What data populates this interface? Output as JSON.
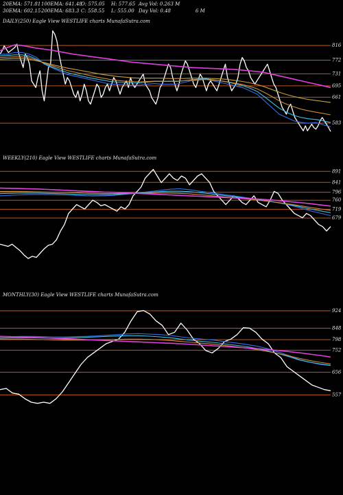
{
  "header": {
    "row1": [
      {
        "k": "ema20_label",
        "text": "20EMA: 571.81"
      },
      {
        "k": "ema100_label",
        "text": "100EMA: 641.48"
      },
      {
        "k": "open_label",
        "text": "O: 575.05"
      },
      {
        "k": "high_label",
        "text": "H: 577.65"
      },
      {
        "k": "avgvol_label",
        "text": "Avg Vol: 0.263 M"
      }
    ],
    "row2": [
      {
        "k": "ema30_label",
        "text": "30EMA: 602.15"
      },
      {
        "k": "ema200_label",
        "text": "200EMA: 683.3"
      },
      {
        "k": "close_label",
        "text": "C: 558.55"
      },
      {
        "k": "low_label",
        "text": "L: 555.00"
      },
      {
        "k": "dayvol_label",
        "text": "Day Vol: 0.48"
      },
      {
        "k": "dayvol_unit",
        "text": "6  M"
      }
    ]
  },
  "colors": {
    "background": "#000000",
    "price": "#ffffff",
    "level_line": "#c0561e",
    "ema_magenta": "#e040e0",
    "ema_blue": "#3a6ee8",
    "ema_cyan": "#40c0e8",
    "ema_orange": "#d08a3a",
    "ema_gold": "#c8a040",
    "ema_pink": "#e87ab0",
    "text": "#e6e6e6"
  },
  "chart_data": [
    {
      "type": "line",
      "title": "DAILY(250) Eagle   View  WESTLIFE charts MunafaSutra.com",
      "levels": [
        816,
        772,
        731,
        695,
        661,
        583
      ],
      "price_range": [
        540,
        870
      ],
      "series": [
        {
          "kind": "price",
          "color": "price",
          "values": [
            790,
            800,
            815,
            805,
            795,
            800,
            805,
            810,
            820,
            790,
            770,
            750,
            790,
            780,
            760,
            710,
            700,
            690,
            720,
            740,
            680,
            650,
            700,
            750,
            760,
            860,
            850,
            830,
            790,
            760,
            730,
            700,
            720,
            710,
            690,
            670,
            660,
            680,
            650,
            670,
            700,
            680,
            650,
            640,
            660,
            680,
            700,
            690,
            660,
            670,
            690,
            700,
            680,
            700,
            720,
            710,
            690,
            670,
            690,
            700,
            710,
            690,
            720,
            700,
            690,
            700,
            710,
            720,
            730,
            700,
            690,
            680,
            660,
            650,
            640,
            660,
            690,
            700,
            720,
            740,
            760,
            750,
            720,
            700,
            680,
            700,
            730,
            750,
            770,
            760,
            740,
            720,
            700,
            690,
            710,
            730,
            720,
            700,
            680,
            700,
            710,
            700,
            690,
            680,
            700,
            720,
            740,
            760,
            720,
            700,
            680,
            690,
            700,
            720,
            760,
            780,
            770,
            750,
            740,
            720,
            710,
            700,
            710,
            720,
            730,
            740,
            750,
            760,
            740,
            720,
            700,
            690,
            670,
            650,
            630,
            620,
            610,
            630,
            640,
            620,
            600,
            590,
            580,
            570,
            560,
            575,
            560,
            570,
            580,
            570,
            565,
            575,
            590,
            600,
            590,
            580,
            570,
            558
          ]
        },
        {
          "kind": "ema",
          "color": "ema_blue",
          "values": [
            790,
            790,
            795,
            795,
            790,
            780,
            760,
            750,
            740,
            730,
            725,
            720,
            715,
            710,
            705,
            700,
            700,
            698,
            697,
            697,
            700,
            702,
            700,
            700,
            700,
            705,
            710,
            712,
            715,
            710,
            705,
            700,
            695,
            690,
            680,
            670,
            650,
            630,
            610,
            600,
            590,
            585,
            583,
            585,
            578,
            572
          ]
        },
        {
          "kind": "ema",
          "color": "ema_cyan",
          "values": [
            785,
            786,
            788,
            788,
            784,
            775,
            762,
            752,
            744,
            736,
            730,
            725,
            720,
            716,
            712,
            708,
            706,
            705,
            704,
            704,
            706,
            708,
            708,
            708,
            708,
            710,
            713,
            715,
            716,
            713,
            710,
            706,
            701,
            696,
            688,
            678,
            662,
            645,
            628,
            616,
            606,
            600,
            596,
            594,
            590,
            585
          ]
        },
        {
          "kind": "ema",
          "color": "ema_orange",
          "values": [
            780,
            781,
            782,
            782,
            779,
            772,
            764,
            756,
            749,
            742,
            737,
            732,
            727,
            722,
            718,
            714,
            711,
            709,
            708,
            707,
            708,
            709,
            709,
            709,
            709,
            710,
            712,
            713,
            714,
            712,
            710,
            707,
            703,
            699,
            693,
            686,
            675,
            663,
            650,
            640,
            632,
            625,
            620,
            616,
            612,
            608
          ]
        },
        {
          "kind": "ema",
          "color": "ema_gold",
          "values": [
            775,
            776,
            777,
            777,
            775,
            770,
            765,
            759,
            754,
            749,
            745,
            741,
            737,
            733,
            729,
            726,
            723,
            721,
            719,
            718,
            718,
            718,
            718,
            717,
            717,
            717,
            718,
            718,
            718,
            717,
            716,
            714,
            711,
            708,
            704,
            699,
            692,
            684,
            676,
            669,
            663,
            658,
            654,
            651,
            648,
            645
          ]
        },
        {
          "kind": "ema",
          "color": "ema_magenta",
          "values": [
            800,
            810,
            818,
            816,
            812,
            808,
            805,
            802,
            798,
            794,
            790,
            787,
            784,
            781,
            778,
            775,
            772,
            769,
            766,
            764,
            762,
            760,
            758,
            756,
            754,
            752,
            750,
            749,
            748,
            747,
            746,
            745,
            744,
            742,
            740,
            738,
            735,
            730,
            725,
            720,
            715,
            710,
            705,
            700,
            695,
            690
          ]
        }
      ]
    },
    {
      "type": "line",
      "title": "WEEKLY(210) Eagle   View  WESTLIFE charts MunafaSutra.com",
      "levels": [
        891,
        841,
        796,
        760,
        719,
        679
      ],
      "price_range": [
        420,
        920
      ],
      "series": [
        {
          "kind": "price",
          "color": "price",
          "values": [
            560,
            555,
            550,
            560,
            545,
            530,
            510,
            495,
            505,
            500,
            520,
            540,
            555,
            560,
            580,
            620,
            650,
            700,
            720,
            740,
            730,
            720,
            740,
            760,
            750,
            735,
            740,
            730,
            720,
            710,
            730,
            720,
            740,
            780,
            800,
            820,
            860,
            880,
            900,
            870,
            840,
            860,
            880,
            860,
            850,
            870,
            860,
            830,
            850,
            870,
            880,
            860,
            840,
            800,
            780,
            760,
            740,
            760,
            780,
            770,
            750,
            740,
            760,
            780,
            750,
            740,
            730,
            760,
            800,
            790,
            760,
            740,
            720,
            700,
            690,
            680,
            700,
            690,
            670,
            650,
            640,
            620,
            640
          ]
        },
        {
          "kind": "ema",
          "color": "ema_blue",
          "values": [
            780,
            782,
            784,
            786,
            786,
            786,
            785,
            784,
            782,
            780,
            779,
            780,
            782,
            786,
            790,
            795,
            800,
            805,
            810,
            812,
            808,
            802,
            796,
            790,
            784,
            778,
            772,
            766,
            760,
            752,
            744,
            734,
            722,
            710,
            700,
            690
          ]
        },
        {
          "kind": "ema",
          "color": "ema_cyan",
          "values": [
            790,
            791,
            792,
            792,
            792,
            791,
            790,
            789,
            787,
            786,
            785,
            785,
            786,
            788,
            790,
            793,
            796,
            799,
            801,
            801,
            799,
            795,
            790,
            785,
            780,
            775,
            770,
            765,
            759,
            752,
            745,
            737,
            728,
            719,
            711,
            703
          ]
        },
        {
          "kind": "ema",
          "color": "ema_orange",
          "values": [
            800,
            800,
            800,
            799,
            798,
            797,
            796,
            795,
            794,
            792,
            791,
            790,
            790,
            790,
            790,
            791,
            792,
            792,
            792,
            791,
            789,
            786,
            782,
            778,
            774,
            770,
            766,
            762,
            757,
            752,
            746,
            740,
            733,
            726,
            720,
            714
          ]
        },
        {
          "kind": "ema",
          "color": "ema_magenta",
          "values": [
            815,
            814,
            813,
            812,
            811,
            809,
            807,
            805,
            803,
            801,
            799,
            797,
            796,
            794,
            792,
            790,
            788,
            786,
            784,
            782,
            780,
            778,
            776,
            774,
            772,
            770,
            768,
            766,
            763,
            760,
            756,
            752,
            748,
            743,
            738,
            733
          ]
        }
      ]
    },
    {
      "type": "line",
      "title": "MONTHLY(30) Eagle   View  WESTLIFE charts MunafaSutra.com",
      "levels": [
        924,
        848,
        798,
        752,
        656,
        557
      ],
      "price_range": [
        480,
        960
      ],
      "series": [
        {
          "kind": "price",
          "color": "price",
          "values": [
            580,
            585,
            565,
            560,
            540,
            525,
            520,
            525,
            520,
            540,
            570,
            610,
            650,
            690,
            720,
            740,
            760,
            780,
            790,
            800,
            830,
            880,
            920,
            925,
            910,
            880,
            860,
            820,
            830,
            870,
            840,
            800,
            780,
            750,
            740,
            760,
            790,
            800,
            820,
            850,
            848,
            830,
            800,
            780,
            740,
            720,
            680,
            660,
            640,
            620,
            600,
            590,
            580,
            575
          ]
        },
        {
          "kind": "ema",
          "color": "ema_blue",
          "values": [
            810,
            811,
            812,
            812,
            811,
            810,
            810,
            811,
            812,
            814,
            817,
            820,
            823,
            824,
            822,
            820,
            816,
            810,
            804,
            800,
            796,
            790,
            784,
            778,
            770,
            760,
            745,
            730,
            712,
            700,
            690,
            685
          ]
        },
        {
          "kind": "ema",
          "color": "ema_cyan",
          "values": [
            805,
            806,
            806,
            806,
            805,
            805,
            805,
            806,
            808,
            810,
            812,
            814,
            815,
            815,
            813,
            810,
            806,
            800,
            795,
            790,
            786,
            780,
            774,
            768,
            760,
            750,
            738,
            725,
            710,
            700,
            692,
            686
          ]
        },
        {
          "kind": "ema",
          "color": "ema_orange",
          "values": [
            800,
            800,
            800,
            799,
            798,
            797,
            796,
            796,
            796,
            797,
            798,
            799,
            800,
            800,
            799,
            797,
            794,
            790,
            786,
            782,
            778,
            773,
            768,
            762,
            755,
            747,
            738,
            728,
            717,
            707,
            699,
            692
          ]
        },
        {
          "kind": "ema",
          "color": "ema_magenta",
          "values": [
            812,
            811,
            810,
            808,
            806,
            804,
            802,
            800,
            798,
            796,
            794,
            792,
            790,
            788,
            786,
            784,
            782,
            780,
            777,
            774,
            771,
            768,
            765,
            762,
            759,
            755,
            751,
            746,
            741,
            735,
            729,
            722
          ]
        }
      ]
    }
  ]
}
